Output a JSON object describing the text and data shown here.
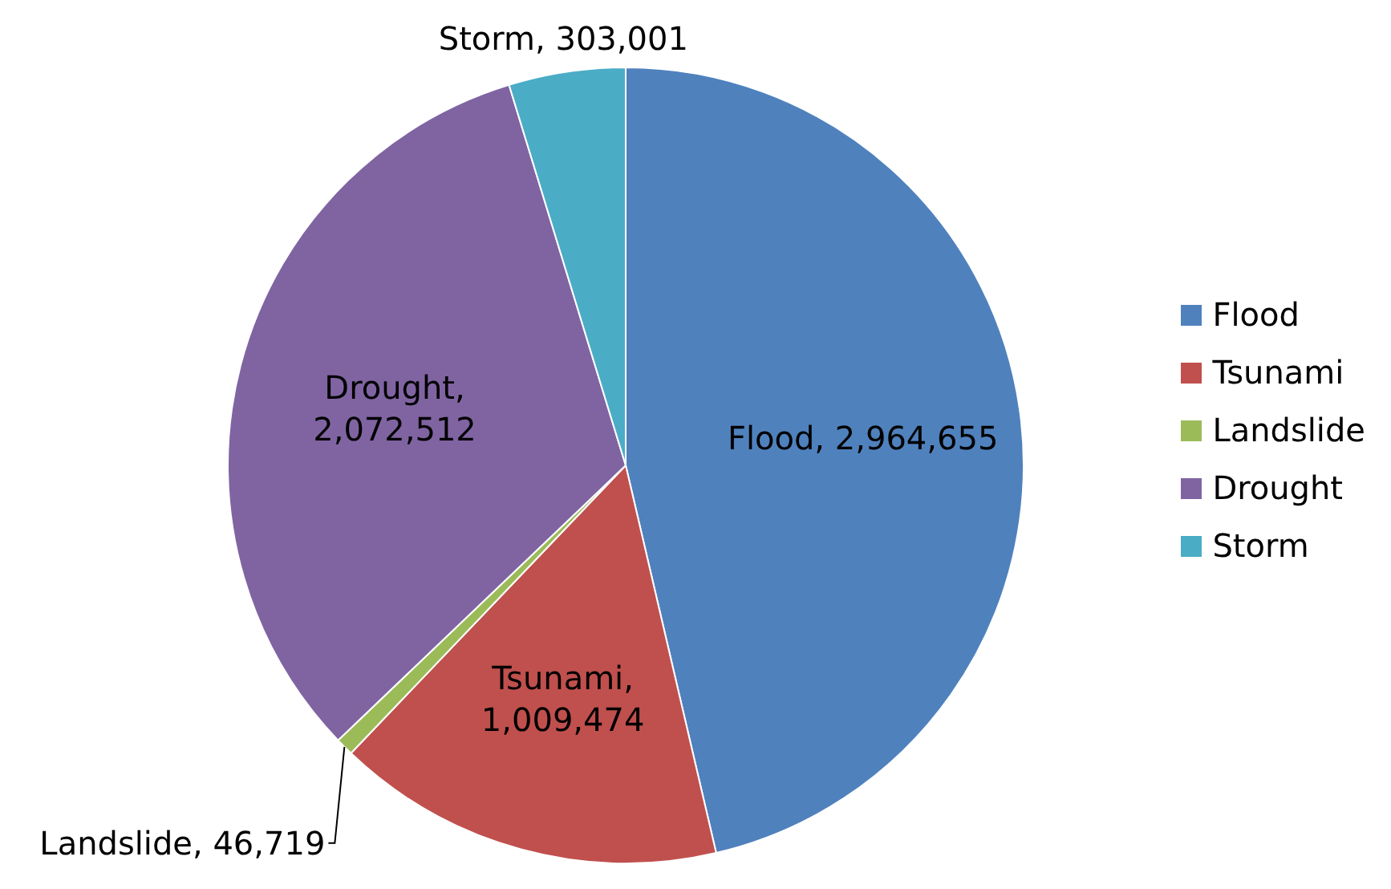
{
  "chart_data": {
    "type": "pie",
    "categories": [
      "Flood",
      "Tsunami",
      "Landslide",
      "Drought",
      "Storm"
    ],
    "values": [
      2964655,
      1009474,
      46719,
      2072512,
      303001
    ],
    "value_labels": [
      "Flood, 2,964,655",
      "Tsunami, 1,009,474",
      "Landslide, 46,719",
      "Drought, 2,072,512",
      "Storm, 303,001"
    ],
    "colors": [
      "#4f81bd",
      "#c0504d",
      "#9bbb59",
      "#8064a2",
      "#4bacc6"
    ],
    "legend": "right"
  }
}
